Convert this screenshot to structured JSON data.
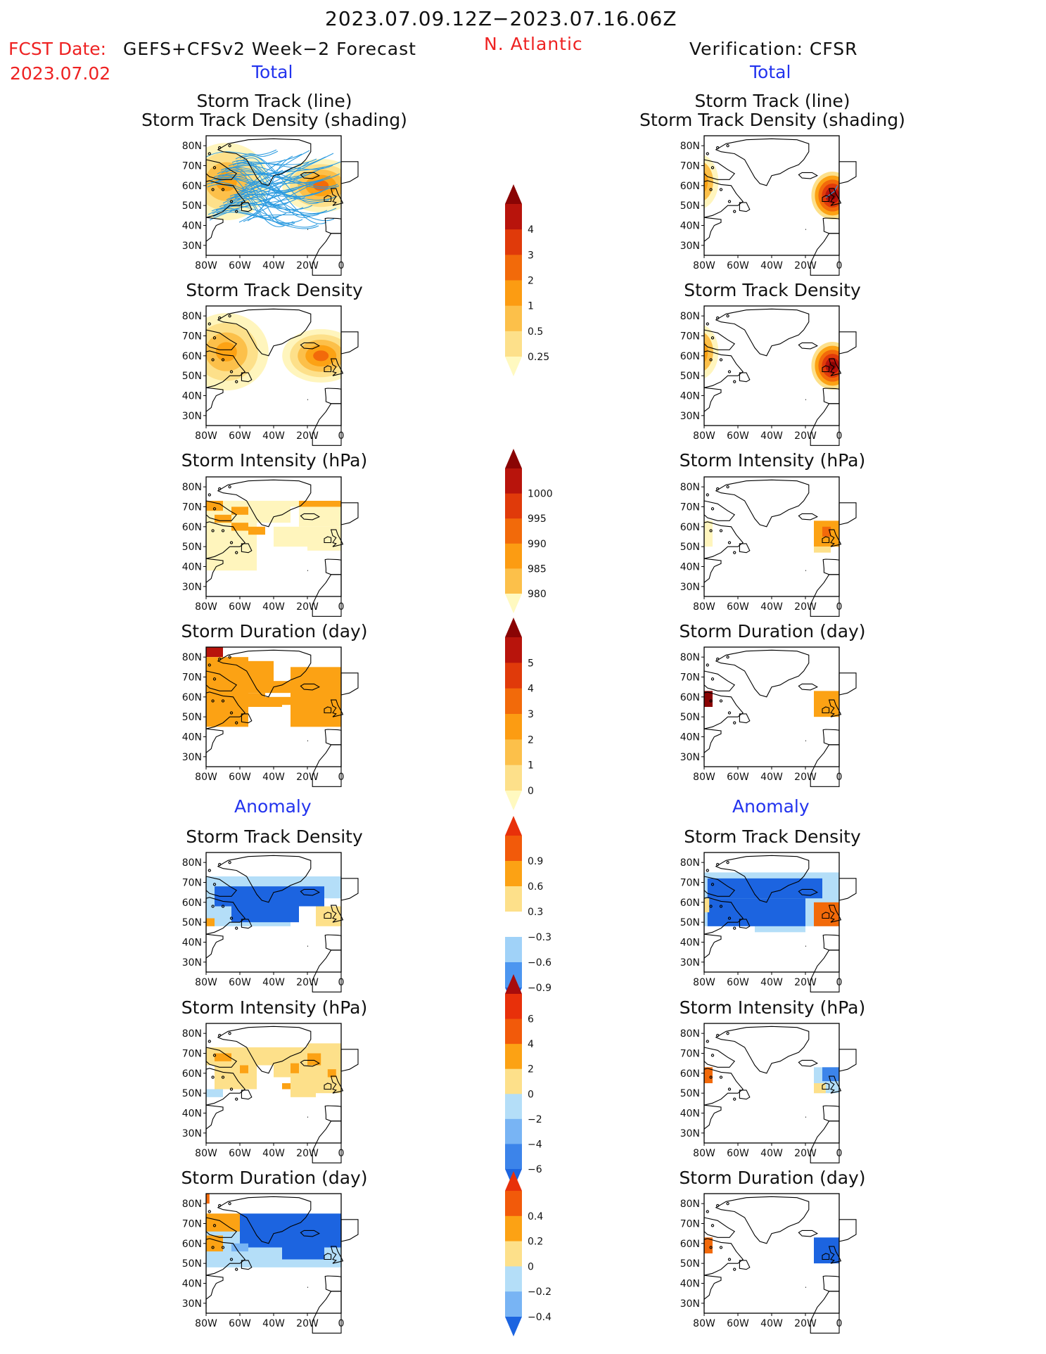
{
  "header": {
    "period": "2023.07.09.12Z−2023.07.16.06Z",
    "fcst_date_label": "FCST Date:",
    "fcst_model": "GEFS+CFSv2 Week−2 Forecast",
    "fcst_date_value": "2023.07.02",
    "region": "N. Atlantic",
    "verification": "Verification: CFSR"
  },
  "sections": {
    "total_left": "Total",
    "total_right": "Total",
    "anomaly_left": "Anomaly",
    "anomaly_right": "Anomaly"
  },
  "panel_titles": {
    "track_line": "Storm Track (line)",
    "track_density_shading": "Storm Track Density (shading)",
    "track_density": "Storm Track Density",
    "intensity": "Storm Intensity (hPa)",
    "duration": "Storm Duration (day)"
  },
  "map_axes": {
    "lat_labels": [
      "80N",
      "70N",
      "60N",
      "50N",
      "40N",
      "30N"
    ],
    "lon_labels": [
      "80W",
      "60W",
      "40W",
      "20W",
      "0"
    ]
  },
  "colorbars": {
    "track_density_total": {
      "labels": [
        "4",
        "3",
        "2",
        "1",
        "0.5",
        "0.25"
      ],
      "colors": [
        "#fff9c0",
        "#fde08a",
        "#fcc04a",
        "#fc9c12",
        "#f26a0a",
        "#e03a0a",
        "#b8140c",
        "#8a0404"
      ]
    },
    "intensity_total": {
      "labels": [
        "1000",
        "995",
        "990",
        "985",
        "980"
      ],
      "colors": [
        "#fff9c0",
        "#fcc04a",
        "#fc9c12",
        "#f26a0a",
        "#e03a0a",
        "#b8140c",
        "#8a0404"
      ]
    },
    "duration_total": {
      "labels": [
        "5",
        "4",
        "3",
        "2",
        "1",
        "0"
      ],
      "colors": [
        "#fff9c0",
        "#fde08a",
        "#fcc04a",
        "#fc9c12",
        "#f26a0a",
        "#e03a0a",
        "#b8140c",
        "#8a0404"
      ]
    },
    "track_density_anom": {
      "labels": [
        "0.9",
        "0.6",
        "0.3",
        "−0.3",
        "−0.6",
        "−0.9"
      ],
      "colors": [
        "#1c64e0",
        "#4c96f0",
        "#a0d2f8",
        "#ffffff",
        "#fde08a",
        "#fca214",
        "#f25a0a",
        "#e8300a"
      ]
    },
    "intensity_anom": {
      "labels": [
        "6",
        "4",
        "2",
        "0",
        "−2",
        "−4",
        "−6"
      ],
      "colors": [
        "#1c64e0",
        "#3c84ea",
        "#78b4f4",
        "#b4def8",
        "#fde08a",
        "#fca214",
        "#f25a0a",
        "#e8300a",
        "#a80c0c"
      ]
    },
    "duration_anom": {
      "labels": [
        "0.4",
        "0.2",
        "0",
        "−0.2",
        "−0.4"
      ],
      "colors": [
        "#1c64e0",
        "#78b4f4",
        "#b4def8",
        "#fde08a",
        "#fca214",
        "#f25a0a",
        "#e8300a"
      ]
    }
  }
}
